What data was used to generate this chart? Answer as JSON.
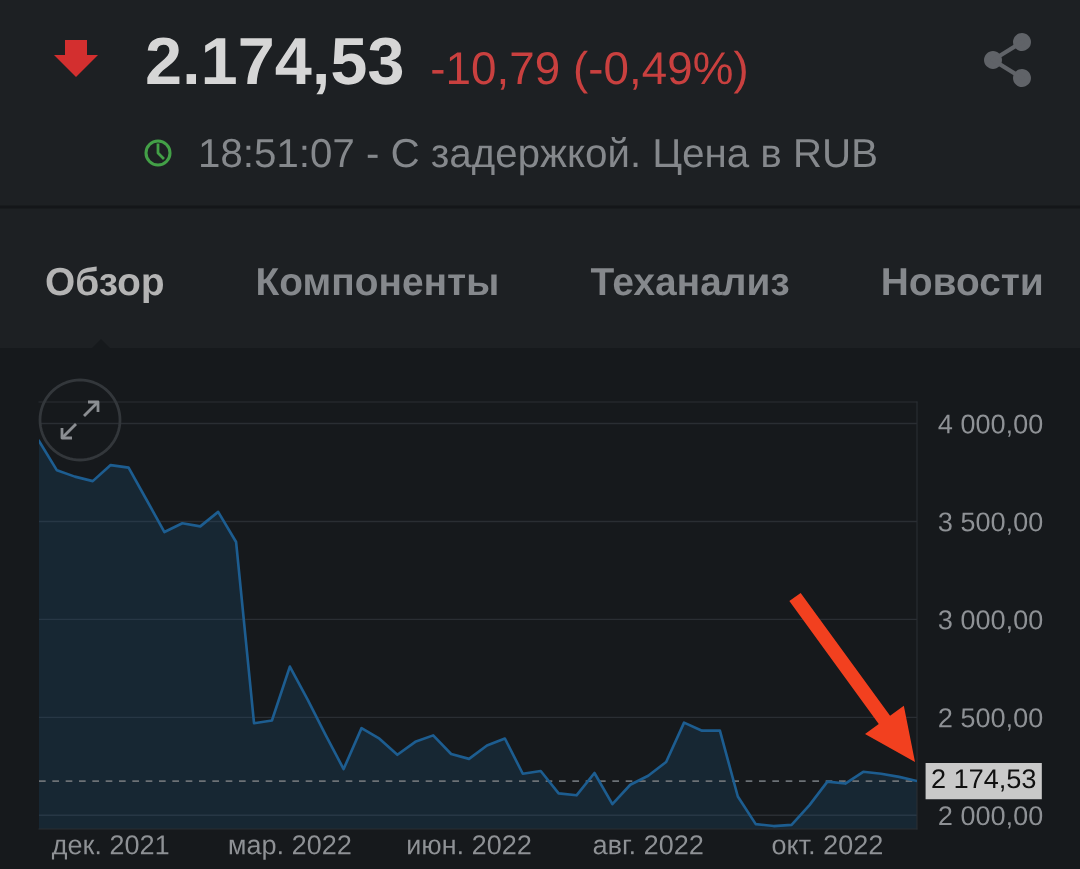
{
  "chart_data": {
    "type": "area",
    "title": "2.174,53",
    "subtitle": "-10,79 (-0,49%)",
    "annotations": [
      "18:51:07 - С задержкой. Цена в RUB",
      "Обзор",
      "Компоненты",
      "Теханализ",
      "Новости"
    ],
    "categories": [
      null,
      null,
      null,
      null,
      "дек. 2021",
      null,
      null,
      null,
      null,
      null,
      null,
      null,
      null,
      null,
      "мар. 2022",
      null,
      null,
      null,
      null,
      null,
      null,
      null,
      null,
      null,
      "июн. 2022",
      null,
      null,
      null,
      null,
      null,
      null,
      null,
      null,
      null,
      "авг. 2022",
      null,
      null,
      null,
      null,
      null,
      null,
      null,
      null,
      null,
      "окт. 2022",
      null,
      null,
      null,
      null,
      null
    ],
    "values": [
      3911,
      3761,
      3729,
      3706,
      3788,
      3775,
      3611,
      3446,
      3491,
      3475,
      3549,
      3395,
      2470,
      2484,
      2759,
      2589,
      2409,
      2236,
      2445,
      2391,
      2309,
      2375,
      2408,
      2313,
      2288,
      2356,
      2392,
      2212,
      2226,
      2112,
      2102,
      2216,
      2057,
      2156,
      2202,
      2272,
      2473,
      2432,
      2432,
      2096,
      1955,
      1945,
      1951,
      2052,
      2172,
      2162,
      2222,
      2212,
      2196,
      2175
    ],
    "color": "#1d5d90",
    "ylim": [
      1930,
      4110
    ],
    "yticks": [
      {
        "value": 2000,
        "label": "2 000,00"
      },
      {
        "value": 2500,
        "label": "2 500,00"
      },
      {
        "value": 3000,
        "label": "3 000,00"
      },
      {
        "value": 3500,
        "label": "3 500,00"
      },
      {
        "value": 4000,
        "label": "4 000,00"
      }
    ],
    "grid": "y",
    "ref_lines": [
      {
        "axis": "y",
        "value": 2174.53,
        "label": "2 174,53",
        "color": "#6c7176",
        "line_style": "dashed"
      }
    ]
  }
}
